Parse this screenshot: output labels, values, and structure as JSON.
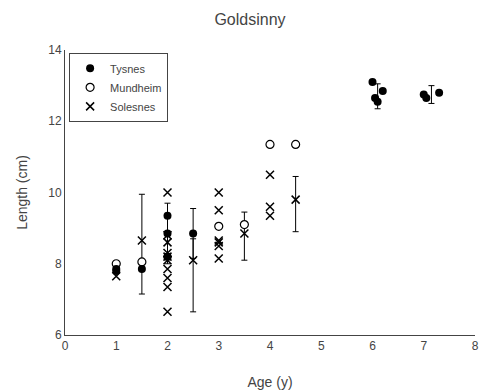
{
  "chart_data": {
    "type": "scatter",
    "title": "Goldsinny",
    "xlabel": "Age (y)",
    "ylabel": "Length (cm)",
    "xlim": [
      0,
      8
    ],
    "ylim": [
      6,
      14
    ],
    "xticks": [
      0,
      1,
      2,
      3,
      4,
      5,
      6,
      7,
      8
    ],
    "yticks": [
      6,
      8,
      10,
      12,
      14
    ],
    "grid": false,
    "legend": "upper left",
    "series": [
      {
        "name": "Tysnes",
        "color": "#000000",
        "marker": "circle",
        "x": [
          1.0,
          1.0,
          1.5,
          2.0,
          2.0,
          2.0,
          2.0,
          2.5,
          6.0,
          6.05,
          6.1,
          6.2,
          7.0,
          7.05,
          7.3
        ],
        "values": [
          7.8,
          7.85,
          7.85,
          9.35,
          8.85,
          8.2,
          8.2,
          8.85,
          13.1,
          12.65,
          12.55,
          12.85,
          12.75,
          12.65,
          12.8
        ],
        "errorbars": [
          {
            "x": 2.0,
            "y": 8.85,
            "yerr": 0.85
          },
          {
            "x": 2.5,
            "y": 8.85,
            "yerr": 0.7
          },
          {
            "x": 6.1,
            "y": 12.7,
            "yerr": 0.35
          },
          {
            "x": 7.15,
            "y": 12.75,
            "yerr": 0.25
          }
        ]
      },
      {
        "name": "Mundheim",
        "color": "#000000",
        "marker": "open_circle",
        "x": [
          1.0,
          1.5,
          3.0,
          3.5,
          4.0,
          4.5
        ],
        "values": [
          8.0,
          8.05,
          9.05,
          9.1,
          11.35,
          11.35
        ],
        "errorbars": []
      },
      {
        "name": "Solesnes",
        "color": "#000000",
        "marker": "x",
        "x": [
          1.0,
          1.5,
          2.0,
          2.0,
          2.0,
          2.0,
          2.0,
          2.0,
          2.0,
          2.0,
          2.0,
          2.0,
          2.5,
          3.0,
          3.0,
          3.0,
          3.0,
          3.0,
          3.0,
          3.5,
          4.0,
          4.0,
          4.0,
          4.5
        ],
        "values": [
          7.65,
          8.65,
          10.0,
          8.8,
          8.6,
          8.3,
          8.2,
          8.1,
          7.85,
          7.6,
          7.35,
          6.65,
          8.1,
          10.0,
          9.5,
          8.65,
          8.6,
          8.5,
          8.15,
          8.85,
          10.5,
          9.6,
          9.35,
          9.8
        ],
        "errorbars": [
          {
            "x": 1.5,
            "y": 8.5,
            "yerr_lo": 1.35,
            "yerr_hi": 1.45
          },
          {
            "x": 2.5,
            "y": 8.1,
            "yerr_lo": 1.45,
            "yerr_hi": 0.6
          },
          {
            "x": 3.5,
            "y": 8.85,
            "yerr_lo": 0.75,
            "yerr_hi": 0.6
          },
          {
            "x": 4.5,
            "y": 9.8,
            "yerr_lo": 0.9,
            "yerr_hi": 0.65
          }
        ]
      }
    ]
  }
}
